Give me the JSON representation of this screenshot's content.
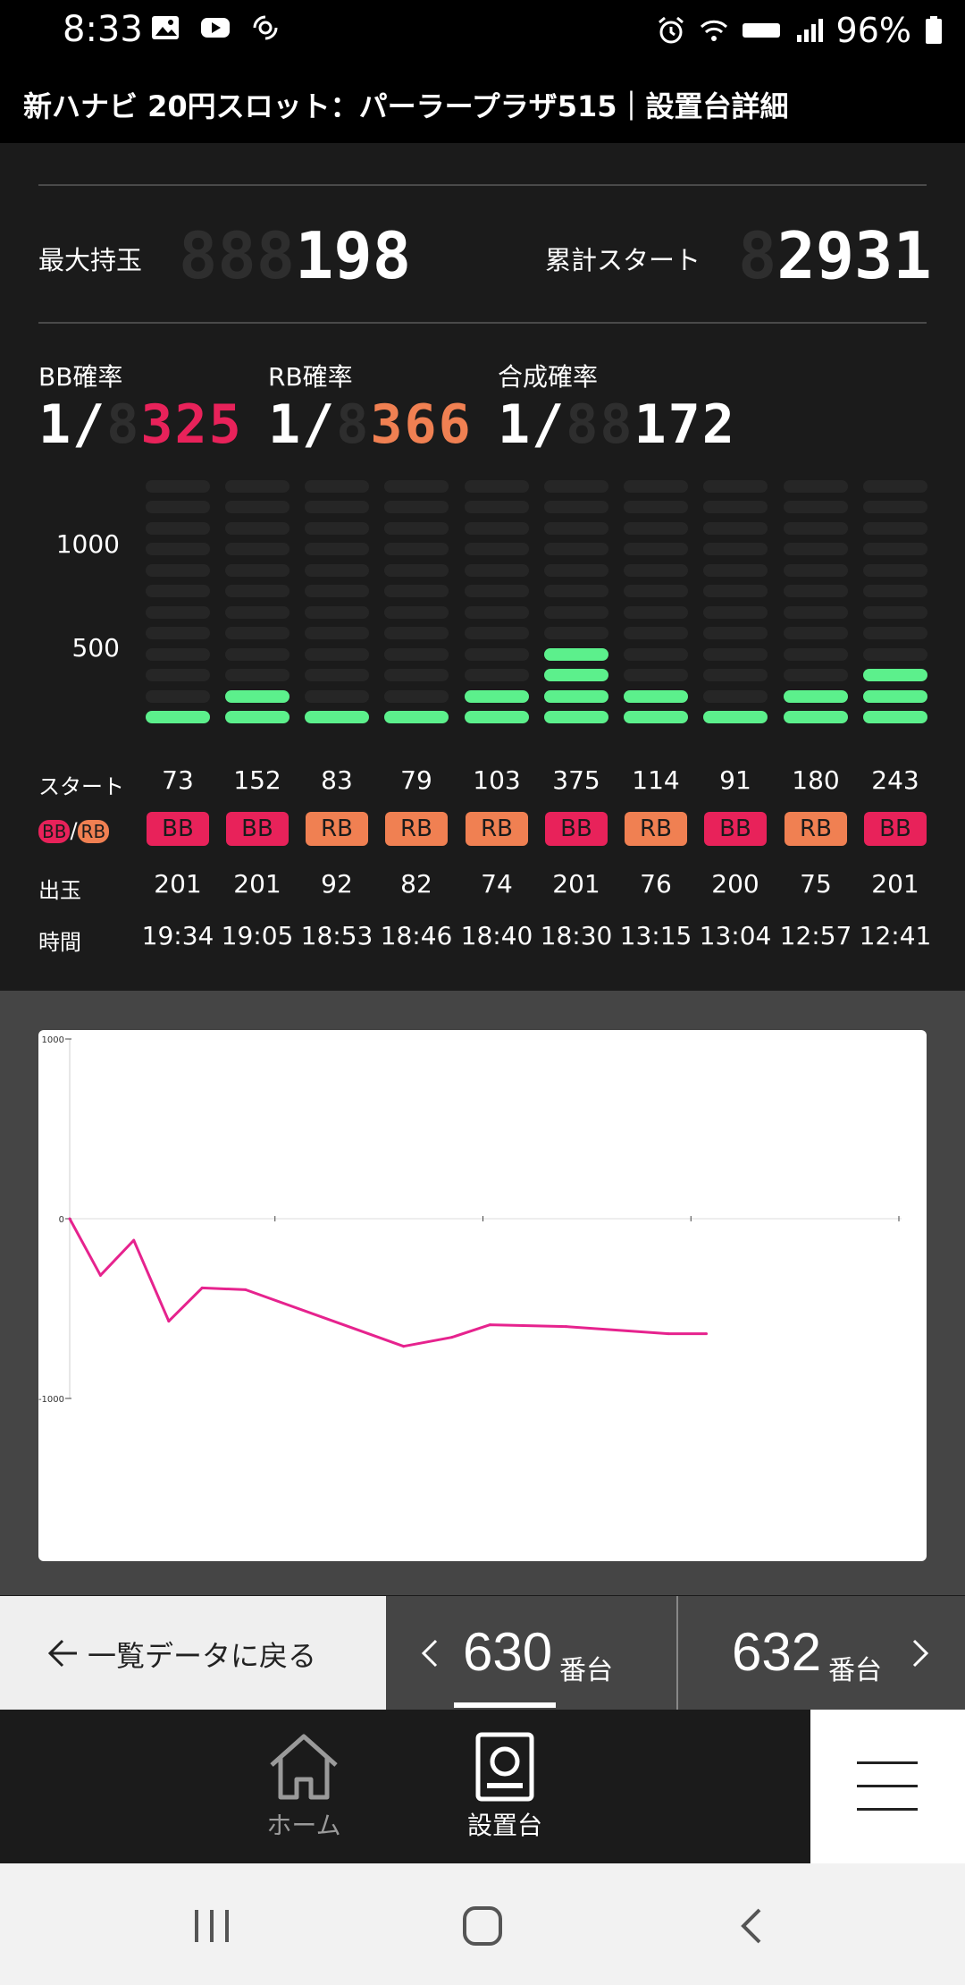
{
  "status_bar": {
    "time": "8:33",
    "battery": "96%"
  },
  "title": "新ハナビ 20円スロット：パーラープラザ515｜設置台詳細",
  "stats": {
    "max_label": "最大持玉",
    "max_value": "198",
    "max_ghost": "888",
    "start_label": "累計スタート",
    "start_value": "2931",
    "start_ghost": "8"
  },
  "probabilities": {
    "bb_label": "BB確率",
    "bb_prefix": "1/",
    "bb_value": "325",
    "bb_ghost": "8",
    "rb_label": "RB確率",
    "rb_prefix": "1/",
    "rb_value": "366",
    "rb_ghost": "8",
    "total_label": "合成確率",
    "total_prefix": "1/",
    "total_value": "172",
    "total_ghost": "88"
  },
  "bar_chart": {
    "y_labels": [
      "1000",
      "500"
    ],
    "levels": [
      1,
      2,
      1,
      1,
      2,
      4,
      2,
      1,
      2,
      3
    ]
  },
  "history": {
    "start_label": "スタート",
    "bb_tag": "BB",
    "slash": "/",
    "rb_tag": "RB",
    "payout_label": "出玉",
    "time_label": "時間",
    "starts": [
      "73",
      "152",
      "83",
      "79",
      "103",
      "375",
      "114",
      "91",
      "180",
      "243"
    ],
    "types": [
      "BB",
      "BB",
      "RB",
      "RB",
      "RB",
      "BB",
      "RB",
      "BB",
      "RB",
      "BB"
    ],
    "payouts": [
      "201",
      "201",
      "92",
      "82",
      "74",
      "201",
      "76",
      "200",
      "75",
      "201"
    ],
    "times": [
      "19:34",
      "19:05",
      "18:53",
      "18:46",
      "18:40",
      "18:30",
      "13:15",
      "13:04",
      "12:57",
      "12:41"
    ]
  },
  "colors": {
    "bb": "#e8225a",
    "rb": "#f08052",
    "bar_on": "#5cf08c",
    "line": "#e6238e"
  },
  "chart_data": {
    "type": "line",
    "ylim": [
      -1000,
      1000
    ],
    "y_ticks": [
      "1000",
      "0",
      "-1000"
    ],
    "x": [
      0,
      73,
      152,
      235,
      314,
      417,
      792,
      906,
      997,
      1177,
      1420,
      1510
    ],
    "xlim": [
      0,
      2000
    ],
    "series": [
      {
        "values": [
          0,
          -315,
          -120,
          -570,
          -385,
          -395,
          -710,
          -660,
          -590,
          -600,
          -640,
          -640
        ]
      }
    ]
  },
  "nav": {
    "back_label": "一覧データに戻る",
    "prev_number": "630",
    "prev_suffix": "番台",
    "next_number": "632",
    "next_suffix": "番台"
  },
  "bottom_nav": {
    "home_label": "ホーム",
    "machine_label": "設置台"
  }
}
